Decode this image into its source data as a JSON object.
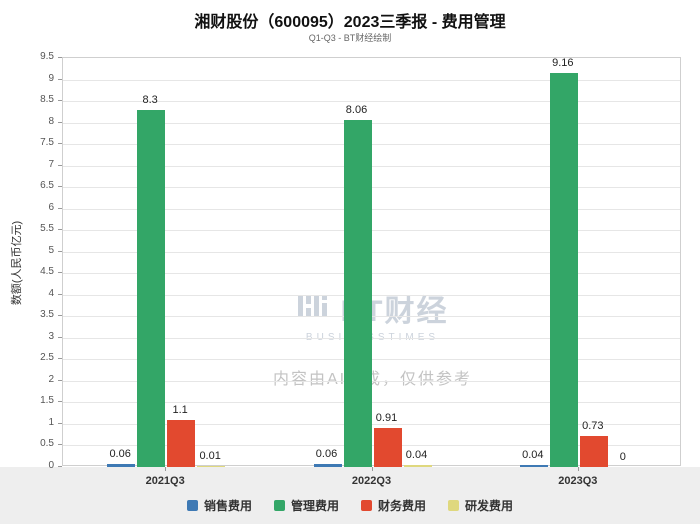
{
  "chart_data": {
    "type": "bar",
    "title": "湘财股份（600095）2023三季报 - 费用管理",
    "subtitle": "Q1-Q3 - BT财经绘制",
    "ylabel": "数额(人民币亿元)",
    "xlabel": "",
    "categories": [
      "2021Q3",
      "2022Q3",
      "2023Q3"
    ],
    "series": [
      {
        "name": "销售费用",
        "color": "#3E79B4",
        "values": [
          0.06,
          0.06,
          0.04
        ]
      },
      {
        "name": "管理费用",
        "color": "#33A667",
        "values": [
          8.3,
          8.06,
          9.16
        ]
      },
      {
        "name": "财务费用",
        "color": "#E2492F",
        "values": [
          1.1,
          0.91,
          0.73
        ]
      },
      {
        "name": "研发费用",
        "color": "#DFD87E",
        "values": [
          0.01,
          0.04,
          0
        ]
      }
    ],
    "ylim": [
      0,
      9.5
    ],
    "ytick_step": 0.5,
    "grid": true,
    "legend_position": "bottom"
  },
  "watermark": {
    "logo_text": "BT财经",
    "logo_sub": "BUSINESSTIMES",
    "disclaimer": "内容由AI生成，仅供参考"
  },
  "colors": {
    "grid": "#e6e6e6",
    "plot_border": "#cfcfcf",
    "bottom_band": "#eeeeee"
  }
}
